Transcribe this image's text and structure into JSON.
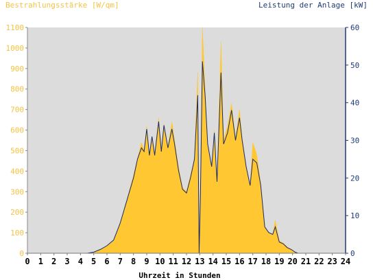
{
  "chart_data": {
    "type": "area",
    "left_axis_title": "Bestrahlungsstärke [W/qm]",
    "right_axis_title": "Leistung der Anlage [kW]",
    "xlabel": "Uhrzeit in Stunden",
    "x_range": [
      0,
      24
    ],
    "y_left_range": [
      0,
      1100
    ],
    "y_right_range": [
      0,
      60
    ],
    "x_ticks": [
      "0",
      "1",
      "2",
      "3",
      "4",
      "5",
      "6",
      "7",
      "8",
      "9",
      "10",
      "11",
      "12",
      "13",
      "14",
      "15",
      "16",
      "17",
      "18",
      "19",
      "20",
      "21",
      "22",
      "23",
      "24"
    ],
    "y_left_ticks": [
      "0",
      "100",
      "200",
      "300",
      "400",
      "500",
      "600",
      "700",
      "800",
      "900",
      "1000",
      "1100"
    ],
    "y_right_ticks": [
      "0",
      "10",
      "20",
      "30",
      "40",
      "50",
      "60"
    ],
    "grid": false,
    "colors": {
      "irradiance_fill": "#FFC832",
      "power_line": "#1A2A6A",
      "plot_background": "#DCDCDC",
      "left_axis_text": "#F5C242",
      "right_axis_text": "#1E3A78"
    },
    "series": [
      {
        "axis": "left",
        "style": "filled-area",
        "points": [
          [
            0,
            0
          ],
          [
            4.5,
            0
          ],
          [
            5,
            5
          ],
          [
            5.5,
            20
          ],
          [
            6,
            35
          ],
          [
            6.5,
            60
          ],
          [
            7,
            150
          ],
          [
            7.5,
            260
          ],
          [
            8,
            380
          ],
          [
            8.3,
            460
          ],
          [
            8.6,
            540
          ],
          [
            8.8,
            500
          ],
          [
            9.0,
            620
          ],
          [
            9.2,
            470
          ],
          [
            9.4,
            560
          ],
          [
            9.6,
            480
          ],
          [
            9.9,
            660
          ],
          [
            10.1,
            500
          ],
          [
            10.3,
            630
          ],
          [
            10.6,
            520
          ],
          [
            10.9,
            640
          ],
          [
            11.1,
            550
          ],
          [
            11.4,
            420
          ],
          [
            11.7,
            320
          ],
          [
            12,
            300
          ],
          [
            12.3,
            380
          ],
          [
            12.6,
            460
          ],
          [
            12.85,
            880
          ],
          [
            12.95,
            0
          ],
          [
            13.05,
            300
          ],
          [
            13.2,
            1100
          ],
          [
            13.4,
            800
          ],
          [
            13.6,
            520
          ],
          [
            13.9,
            420
          ],
          [
            14.1,
            600
          ],
          [
            14.3,
            350
          ],
          [
            14.6,
            1030
          ],
          [
            14.8,
            550
          ],
          [
            15.1,
            620
          ],
          [
            15.4,
            730
          ],
          [
            15.7,
            560
          ],
          [
            16.0,
            700
          ],
          [
            16.2,
            560
          ],
          [
            16.5,
            420
          ],
          [
            16.8,
            330
          ],
          [
            17.0,
            540
          ],
          [
            17.3,
            480
          ],
          [
            17.6,
            340
          ],
          [
            17.9,
            130
          ],
          [
            18.2,
            100
          ],
          [
            18.5,
            90
          ],
          [
            18.7,
            160
          ],
          [
            19.0,
            60
          ],
          [
            19.3,
            50
          ],
          [
            19.6,
            30
          ],
          [
            19.9,
            20
          ],
          [
            20.2,
            5
          ],
          [
            20.4,
            0
          ],
          [
            24,
            0
          ]
        ]
      },
      {
        "axis": "right",
        "style": "line",
        "points": [
          [
            0,
            0
          ],
          [
            4.5,
            0
          ],
          [
            5,
            0.3
          ],
          [
            5.5,
            1
          ],
          [
            6,
            2
          ],
          [
            6.5,
            3.5
          ],
          [
            7,
            8
          ],
          [
            7.5,
            14
          ],
          [
            8,
            20
          ],
          [
            8.3,
            25
          ],
          [
            8.6,
            28
          ],
          [
            8.8,
            27
          ],
          [
            9.0,
            33
          ],
          [
            9.2,
            26
          ],
          [
            9.4,
            31
          ],
          [
            9.6,
            26
          ],
          [
            9.9,
            35
          ],
          [
            10.1,
            27
          ],
          [
            10.3,
            34
          ],
          [
            10.6,
            28
          ],
          [
            10.9,
            33
          ],
          [
            11.1,
            29
          ],
          [
            11.4,
            22
          ],
          [
            11.7,
            17
          ],
          [
            12,
            16
          ],
          [
            12.3,
            20
          ],
          [
            12.6,
            25
          ],
          [
            12.85,
            42
          ],
          [
            12.95,
            0
          ],
          [
            13.05,
            15
          ],
          [
            13.2,
            51
          ],
          [
            13.4,
            42
          ],
          [
            13.6,
            29
          ],
          [
            13.9,
            23
          ],
          [
            14.1,
            32
          ],
          [
            14.3,
            19
          ],
          [
            14.6,
            48
          ],
          [
            14.8,
            29
          ],
          [
            15.1,
            32
          ],
          [
            15.4,
            38
          ],
          [
            15.7,
            30
          ],
          [
            16.0,
            36
          ],
          [
            16.2,
            30
          ],
          [
            16.5,
            23
          ],
          [
            16.8,
            18
          ],
          [
            17.0,
            25
          ],
          [
            17.3,
            24
          ],
          [
            17.6,
            18
          ],
          [
            17.9,
            7
          ],
          [
            18.2,
            5.5
          ],
          [
            18.5,
            5
          ],
          [
            18.7,
            7
          ],
          [
            19.0,
            3
          ],
          [
            19.3,
            2.5
          ],
          [
            19.6,
            1.5
          ],
          [
            19.9,
            1
          ],
          [
            20.2,
            0.3
          ],
          [
            20.4,
            0
          ],
          [
            24,
            0
          ]
        ]
      }
    ]
  }
}
